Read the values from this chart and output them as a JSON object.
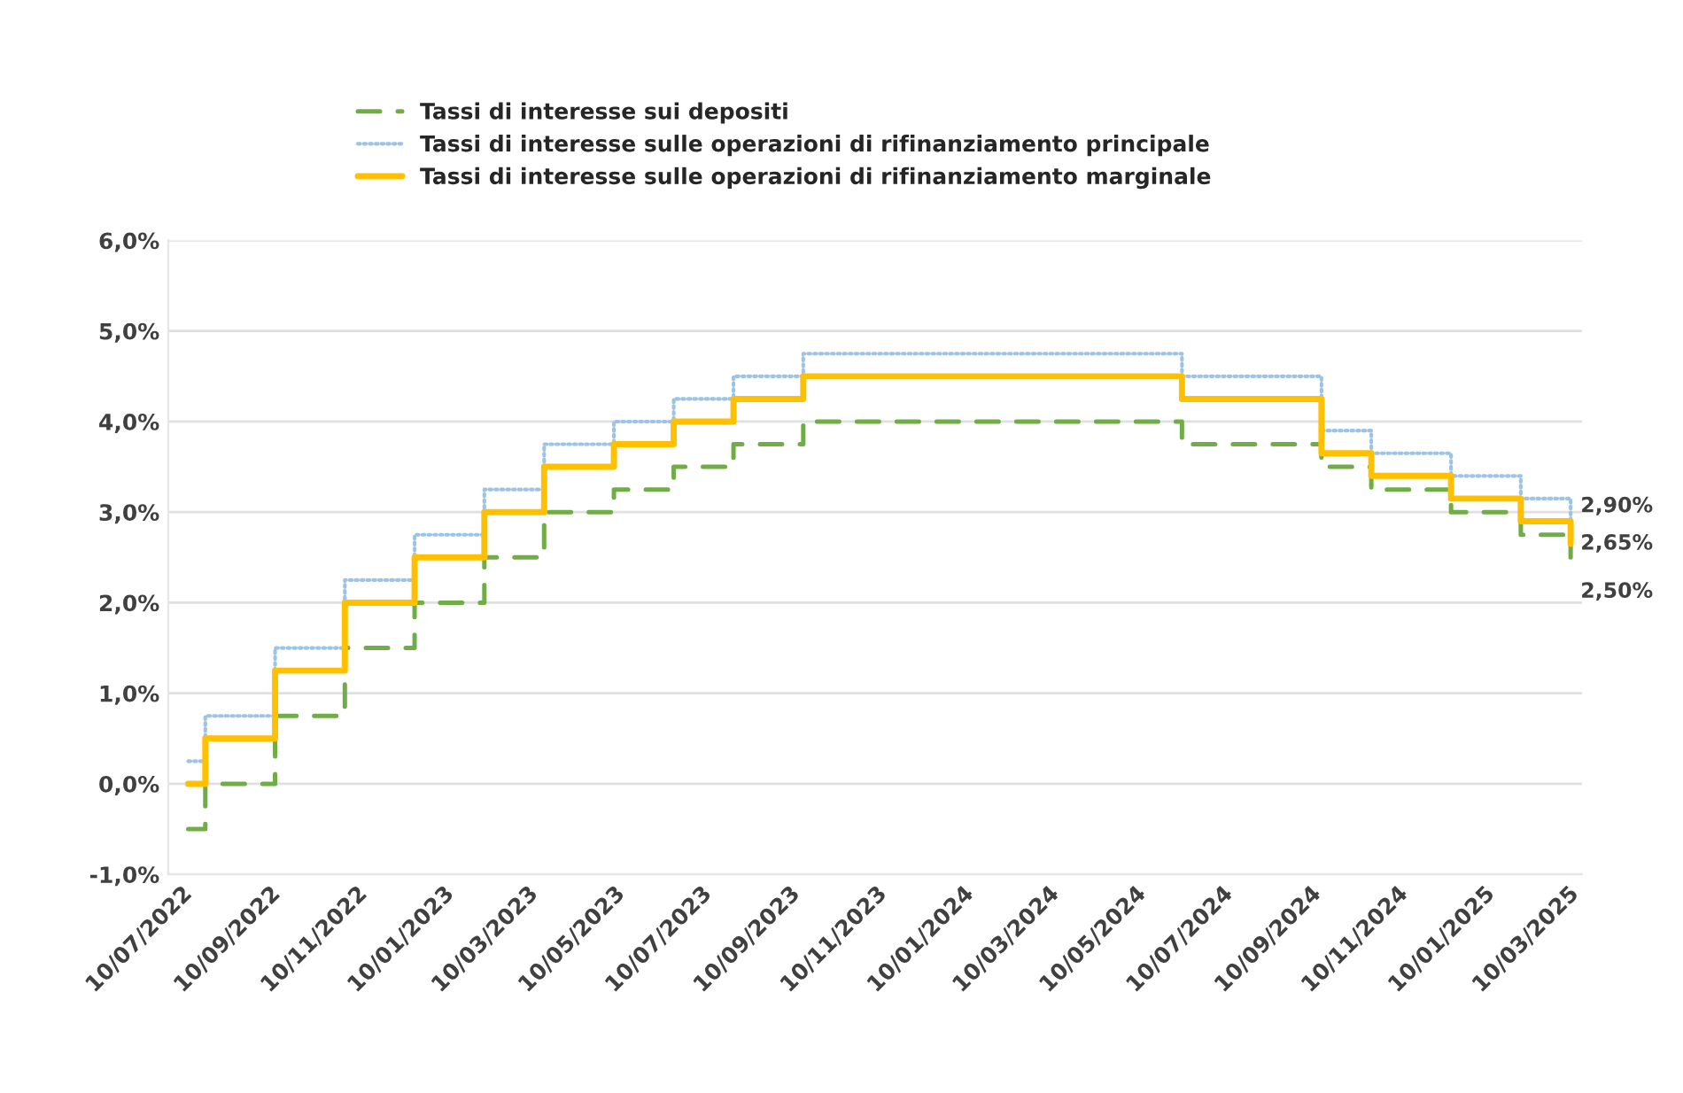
{
  "chart_data": {
    "type": "step",
    "x": [
      "2022-07-15",
      "2022-07-27",
      "2022-09-14",
      "2022-11-02",
      "2022-12-21",
      "2023-02-08",
      "2023-03-22",
      "2023-05-10",
      "2023-06-21",
      "2023-08-02",
      "2023-09-20",
      "2024-06-12",
      "2024-09-18",
      "2024-10-23",
      "2024-12-18",
      "2025-02-05",
      "2025-03-12"
    ],
    "series": [
      {
        "name": "Tassi di interesse sui depositi",
        "color": "#70ad47",
        "line_style": "dashed",
        "values": [
          -0.5,
          0.0,
          0.75,
          1.5,
          2.0,
          2.5,
          3.0,
          3.25,
          3.5,
          3.75,
          4.0,
          3.75,
          3.5,
          3.25,
          3.0,
          2.75,
          2.5
        ]
      },
      {
        "name": "Tassi di interesse sulle operazioni di rifinanziamento principale",
        "color": "#9dc3e6",
        "line_style": "dotted",
        "values": [
          0.25,
          0.75,
          1.5,
          2.25,
          2.75,
          3.25,
          3.75,
          4.0,
          4.25,
          4.5,
          4.75,
          4.5,
          3.9,
          3.65,
          3.4,
          3.15,
          2.9
        ]
      },
      {
        "name": "Tassi di interesse sulle operazioni di rifinanziamento marginale",
        "color": "#ffc000",
        "line_style": "solid",
        "values": [
          0.0,
          0.5,
          1.25,
          2.0,
          2.5,
          3.0,
          3.5,
          3.75,
          4.0,
          4.25,
          4.5,
          4.25,
          3.65,
          3.4,
          3.15,
          2.9,
          2.65
        ]
      }
    ],
    "ylim": [
      -1.0,
      6.0
    ],
    "yticks": [
      {
        "value": -1.0,
        "label": "-1,0%"
      },
      {
        "value": 0.0,
        "label": "0,0%"
      },
      {
        "value": 1.0,
        "label": "1,0%"
      },
      {
        "value": 2.0,
        "label": "2,0%"
      },
      {
        "value": 3.0,
        "label": "3,0%"
      },
      {
        "value": 4.0,
        "label": "4,0%"
      },
      {
        "value": 5.0,
        "label": "5,0%"
      },
      {
        "value": 6.0,
        "label": "6,0%"
      }
    ],
    "xlim": [
      "2022-07-01",
      "2025-03-20"
    ],
    "xticks": [
      {
        "value": "2022-07-10",
        "label": "10/07/2022"
      },
      {
        "value": "2022-09-10",
        "label": "10/09/2022"
      },
      {
        "value": "2022-11-10",
        "label": "10/11/2022"
      },
      {
        "value": "2023-01-10",
        "label": "10/01/2023"
      },
      {
        "value": "2023-03-10",
        "label": "10/03/2023"
      },
      {
        "value": "2023-05-10",
        "label": "10/05/2023"
      },
      {
        "value": "2023-07-10",
        "label": "10/07/2023"
      },
      {
        "value": "2023-09-10",
        "label": "10/09/2023"
      },
      {
        "value": "2023-11-10",
        "label": "10/11/2023"
      },
      {
        "value": "2024-01-10",
        "label": "10/01/2024"
      },
      {
        "value": "2024-03-10",
        "label": "10/03/2024"
      },
      {
        "value": "2024-05-10",
        "label": "10/05/2024"
      },
      {
        "value": "2024-07-10",
        "label": "10/07/2024"
      },
      {
        "value": "2024-09-10",
        "label": "10/09/2024"
      },
      {
        "value": "2024-11-10",
        "label": "10/11/2024"
      },
      {
        "value": "2025-01-10",
        "label": "10/01/2025"
      },
      {
        "value": "2025-03-10",
        "label": "10/03/2025"
      }
    ],
    "annotations": [
      {
        "text": "2,90%",
        "x": "2025-03-12",
        "y": 2.9
      },
      {
        "text": "2,65%",
        "x": "2025-03-12",
        "y": 2.65
      },
      {
        "text": "2,50%",
        "x": "2025-03-12",
        "y": 2.5
      }
    ],
    "grid": "y",
    "legend": "top"
  }
}
